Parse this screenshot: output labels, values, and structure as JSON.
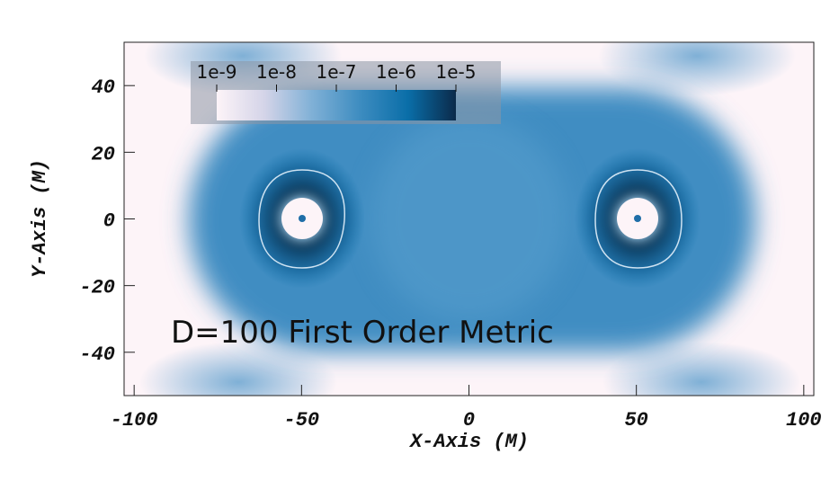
{
  "chart_data": {
    "type": "heatmap",
    "annotation": "D=100 First Order Metric",
    "x_label": "X-Axis (M)",
    "y_label": "Y-Axis (M)",
    "xlim": [
      -103,
      103
    ],
    "ylim": [
      -53,
      53
    ],
    "xticks": [
      -100,
      -50,
      0,
      50,
      100
    ],
    "yticks": [
      -40,
      -20,
      0,
      20,
      40
    ],
    "colorbar": {
      "scale": "log",
      "lim": [
        1e-09,
        1e-05
      ],
      "ticks": [
        1e-09,
        1e-08,
        1e-07,
        {
          "value": 1e-06,
          "label": "1e-6"
        },
        {
          "value": 1e-05,
          "label": "1e-5"
        }
      ],
      "colors": [
        "#fdf4f8",
        "#d4d4e8",
        "#7fb0d6",
        "#3d8cc0",
        "#0a6ea8",
        "#0b2a4a"
      ]
    }
  }
}
